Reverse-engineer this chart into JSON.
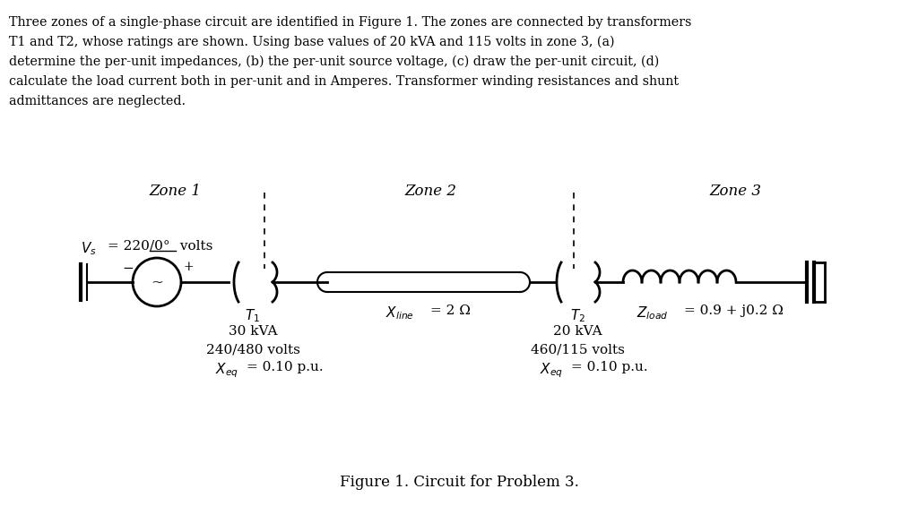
{
  "title_text": "Figure 1. Circuit for Problem 3.",
  "problem_lines": [
    "Three zones of a single-phase circuit are identified in Figure 1. The zones are connected by transformers",
    "T1 and T2, whose ratings are shown. Using base values of 20 kVA and 115 volts in zone 3, (a)",
    "determine the per-unit impedances, (b) the per-unit source voltage, (c) draw the per-unit circuit, (d)",
    "calculate the load current both in per-unit and in Amperes. Transformer winding resistances and shunt",
    "admittances are neglected."
  ],
  "zone1_label": "Zone 1",
  "zone2_label": "Zone 2",
  "zone3_label": "Zone 3",
  "t1_kva": "30 kVA",
  "t1_volts": "240/480 volts",
  "t1_xeq_val": "= 0.10 p.u.",
  "xline_val": "= 2 Ω",
  "t2_kva": "20 kVA",
  "t2_volts": "460/115 volts",
  "t2_xeq_val": "= 0.10 p.u.",
  "zload_val": "= 0.9 + j0.2 Ω",
  "bg_color": "#ffffff",
  "text_color": "#000000",
  "line_color": "#000000"
}
